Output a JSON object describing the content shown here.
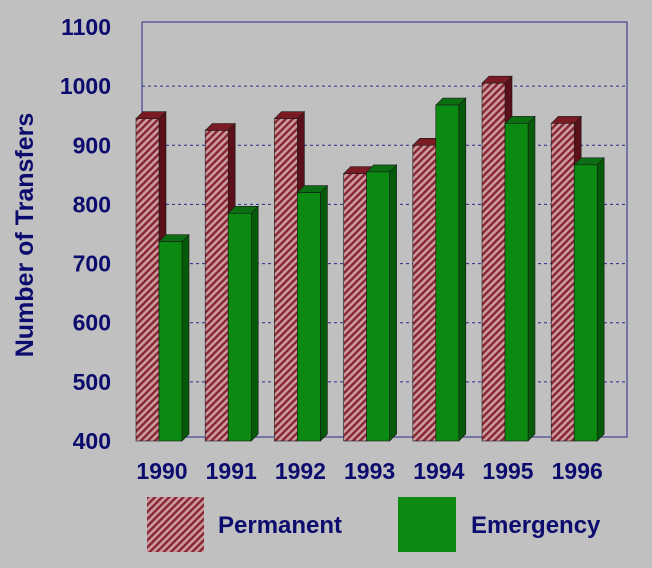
{
  "chart_data": {
    "type": "bar",
    "ylabel": "Number of Transfers",
    "xlabel": "",
    "title": "",
    "ylim": [
      400,
      1100
    ],
    "yticks": [
      400,
      500,
      600,
      700,
      800,
      900,
      1000,
      1100
    ],
    "categories": [
      "1990",
      "1991",
      "1992",
      "1993",
      "1994",
      "1995",
      "1996"
    ],
    "series": [
      {
        "name": "Permanent",
        "color": "#a0303c",
        "pattern": "diagonal-hatch",
        "values": [
          945,
          925,
          945,
          852,
          900,
          1005,
          937
        ]
      },
      {
        "name": "Emergency",
        "color": "#0a8a10",
        "values": [
          737,
          785,
          820,
          855,
          968,
          937,
          867
        ]
      }
    ],
    "grid": "horizontal-dashed",
    "legend": "bottom"
  }
}
